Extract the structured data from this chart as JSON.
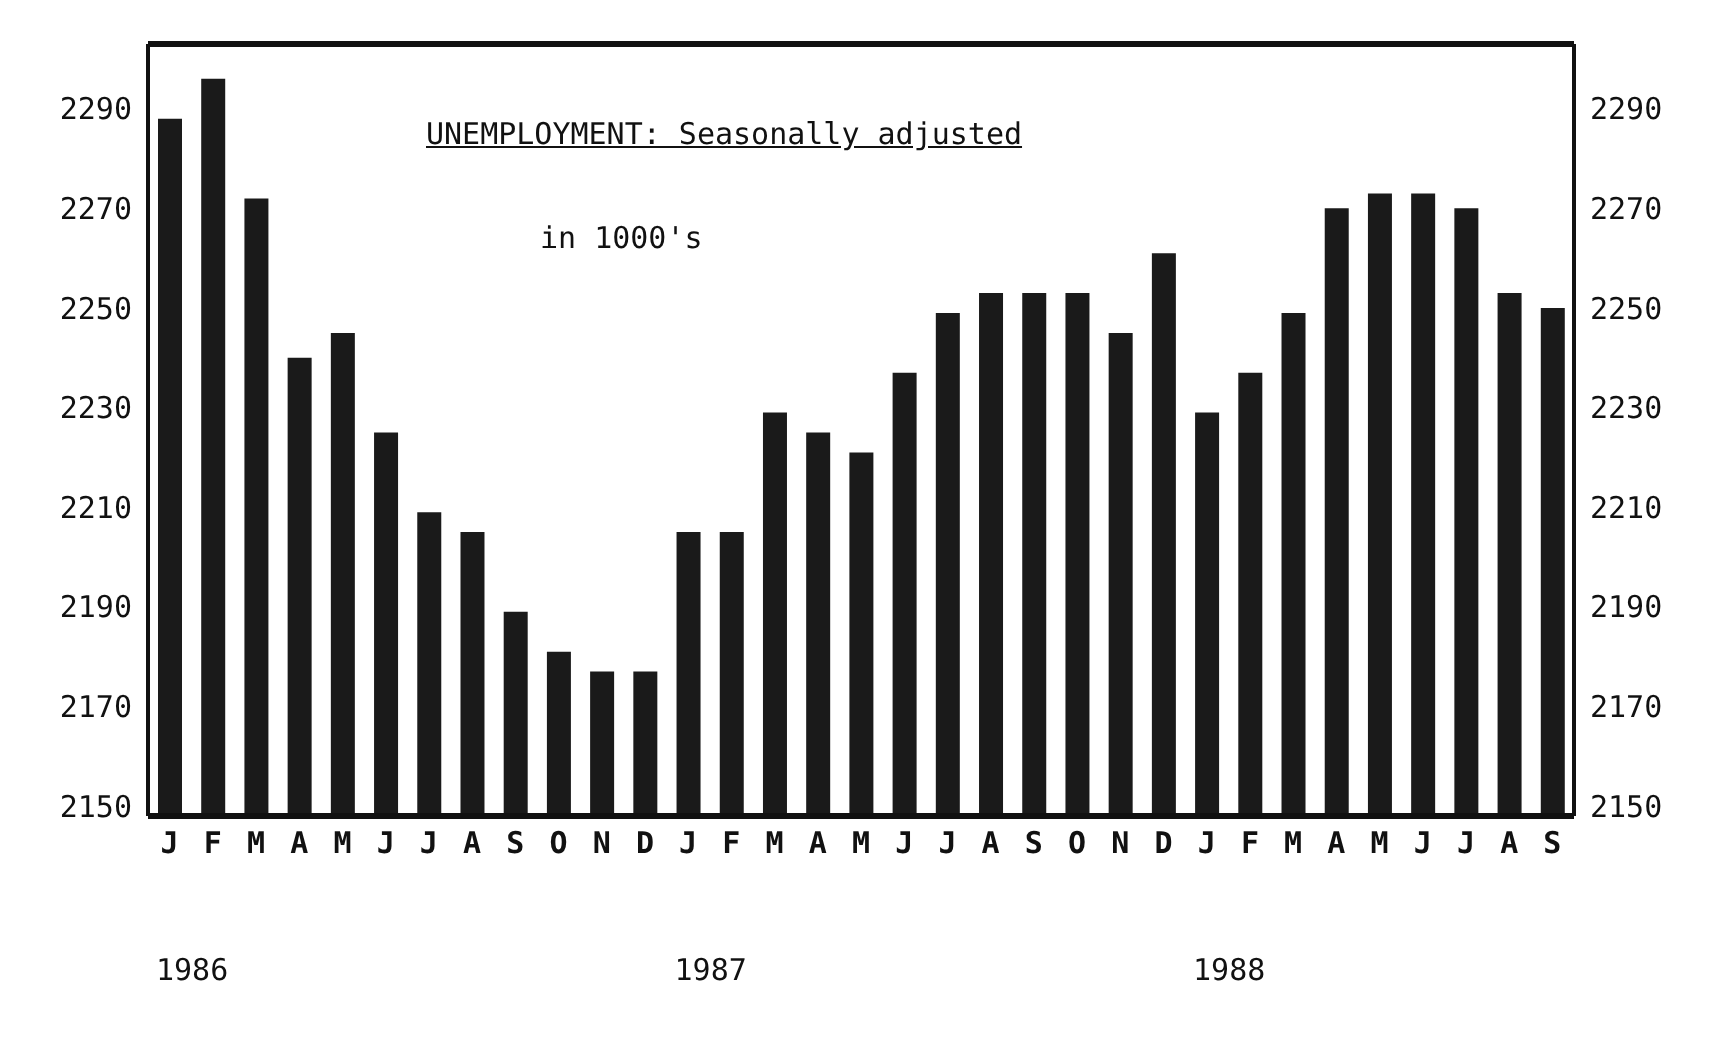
{
  "chart_data": {
    "type": "bar",
    "title": "UNEMPLOYMENT: Seasonally adjusted",
    "subtitle": "in 1000's",
    "categories": [
      "J",
      "F",
      "M",
      "A",
      "M",
      "J",
      "J",
      "A",
      "S",
      "O",
      "N",
      "D",
      "J",
      "F",
      "M",
      "A",
      "M",
      "J",
      "J",
      "A",
      "S",
      "O",
      "N",
      "D",
      "J",
      "F",
      "M",
      "A",
      "M",
      "J",
      "J",
      "A",
      "S"
    ],
    "values": [
      2288,
      2296,
      2272,
      2240,
      2245,
      2225,
      2209,
      2205,
      2189,
      2181,
      2177,
      2177,
      2205,
      2205,
      2229,
      2225,
      2221,
      2237,
      2249,
      2253,
      2253,
      2253,
      2245,
      2261,
      2229,
      2237,
      2249,
      2270,
      2273,
      2273,
      2270,
      2253,
      2250
    ],
    "color": "#1a1a1a",
    "ylim": [
      2148,
      2303
    ],
    "yticks": [
      2150,
      2170,
      2190,
      2210,
      2230,
      2250,
      2270,
      2290
    ],
    "y2lim": [
      2148,
      2303
    ],
    "y2ticks": [
      2150,
      2170,
      2190,
      2210,
      2230,
      2250,
      2270,
      2290
    ],
    "annotations": [
      "1986",
      "1987",
      "1988"
    ]
  }
}
